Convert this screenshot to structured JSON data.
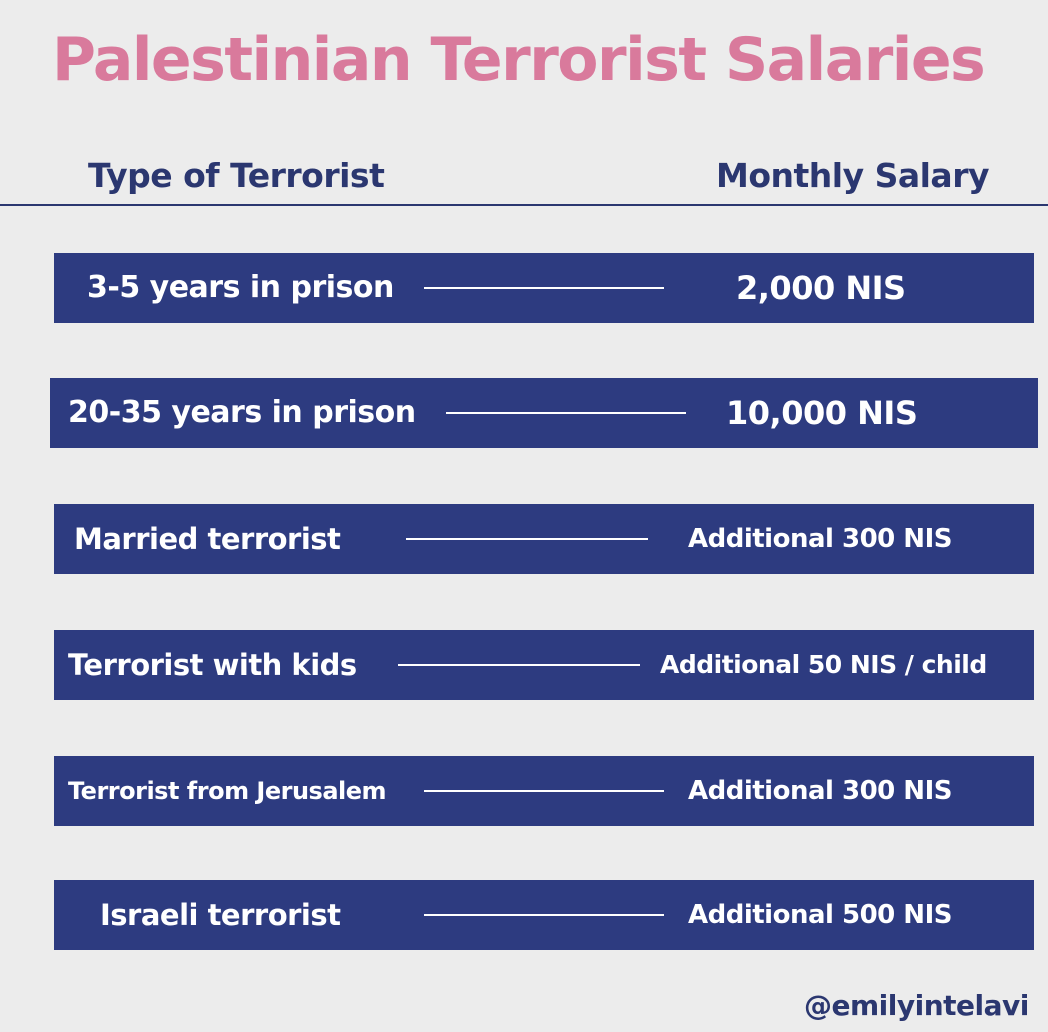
{
  "title": "Palestinian Terrorist Salaries",
  "colors": {
    "background": "#ececec",
    "title": "#d97a9c",
    "header_text": "#2b3770",
    "row_bar": "#2d3b80",
    "row_text": "#ffffff"
  },
  "columns": {
    "type_label": "Type of Terrorist",
    "salary_label": "Monthly Salary"
  },
  "rows": [
    {
      "type": "3-5 years in prison",
      "salary": "2,000 NIS"
    },
    {
      "type": "20-35 years in prison",
      "salary": "10,000 NIS"
    },
    {
      "type": "Married terrorist",
      "salary": "Additional 300 NIS"
    },
    {
      "type": "Terrorist with kids",
      "salary": "Additional 50 NIS / child"
    },
    {
      "type": "Terrorist from Jerusalem",
      "salary": "Additional 300 NIS"
    },
    {
      "type": "Israeli terrorist",
      "salary": "Additional 500 NIS"
    }
  ],
  "credit": "@emilyintelavi"
}
